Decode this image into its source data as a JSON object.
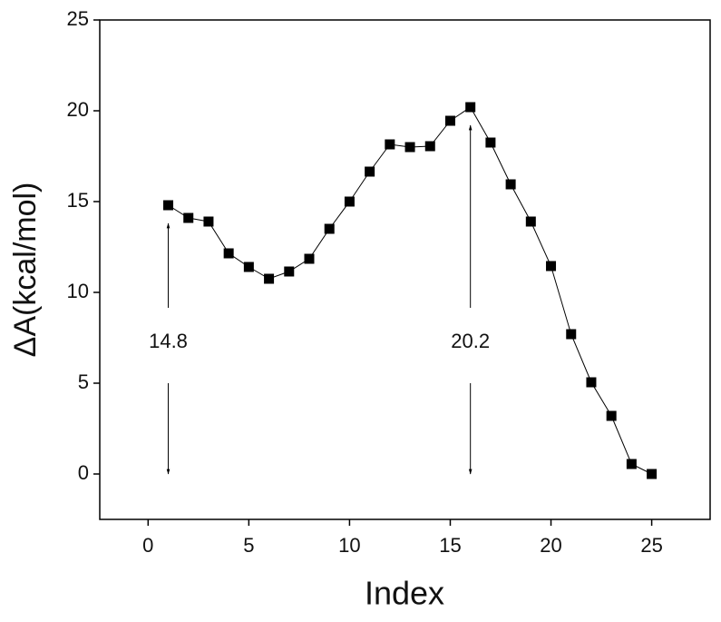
{
  "chart_data": {
    "type": "line",
    "xlabel": "Index",
    "ylabel": "ΔA(kcal/mol)",
    "x": [
      1,
      2,
      3,
      4,
      5,
      6,
      7,
      8,
      9,
      10,
      11,
      12,
      13,
      14,
      15,
      16,
      17,
      18,
      19,
      20,
      21,
      22,
      23,
      24,
      25
    ],
    "series": [
      {
        "color": "#000000",
        "values": [
          14.8,
          14.1,
          13.9,
          12.15,
          11.4,
          10.75,
          11.15,
          11.85,
          13.5,
          15.0,
          16.65,
          18.15,
          18.0,
          18.05,
          19.45,
          20.2,
          18.25,
          15.95,
          13.9,
          11.45,
          7.7,
          5.05,
          3.2,
          0.55,
          0
        ]
      }
    ],
    "xlim": [
      -2.4,
      27.9
    ],
    "xticks": [
      0,
      5,
      10,
      15,
      20,
      25
    ],
    "ylim": [
      -2.5,
      25
    ],
    "yticks": [
      0,
      5,
      10,
      15,
      20,
      25
    ],
    "annotations": [
      {
        "text": "14.8",
        "x": 1
      },
      {
        "text": "20.2",
        "x": 16
      }
    ]
  }
}
